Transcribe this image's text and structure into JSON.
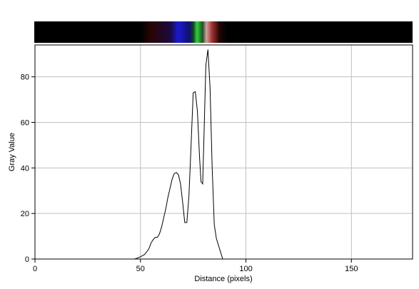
{
  "chart_data": {
    "type": "line",
    "x_label": "Distance (pixels)",
    "y_label": "Gray Value",
    "x": [
      47,
      48,
      50,
      52,
      54,
      55,
      56,
      57,
      58,
      59,
      60,
      61,
      62,
      63,
      64,
      65,
      66,
      67,
      68,
      69,
      70,
      71,
      72,
      73,
      74,
      75,
      76,
      77,
      78,
      78.7,
      79.5,
      80,
      81,
      82,
      83,
      84,
      85,
      86,
      87,
      88,
      89
    ],
    "series": [
      {
        "color": "#000000",
        "values": [
          0,
          0.2,
          1,
          2,
          4.5,
          7,
          8.5,
          9.5,
          9.5,
          11,
          14,
          18,
          22,
          27,
          31,
          35,
          37.5,
          38,
          37,
          33,
          25,
          16,
          16,
          28,
          50,
          73,
          73.5,
          65,
          45,
          34,
          33,
          50,
          85,
          92,
          75,
          40,
          15,
          9,
          6,
          3,
          0
        ]
      }
    ],
    "xlim": [
      0,
      179
    ],
    "ylim": [
      0,
      94
    ],
    "xticks": [
      0,
      50,
      100,
      150
    ],
    "yticks": [
      0,
      20,
      40,
      60,
      80
    ],
    "grid": true
  }
}
